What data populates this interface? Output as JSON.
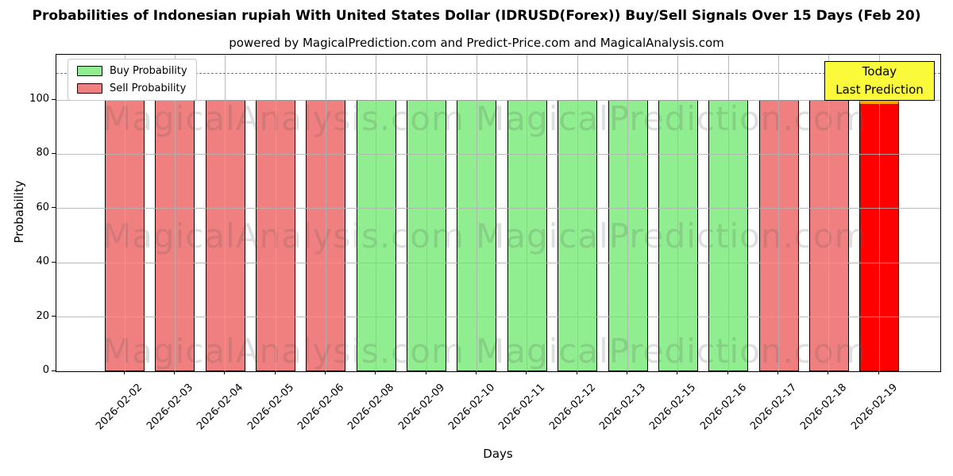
{
  "header": {
    "title": "Probabilities of Indonesian rupiah With United States Dollar (IDRUSD(Forex)) Buy/Sell Signals Over 15 Days (Feb 20)",
    "subtitle": "powered by MagicalPrediction.com and Predict-Price.com and MagicalAnalysis.com"
  },
  "legend": {
    "items": [
      {
        "label": "Buy Probability",
        "color": "#90ee90"
      },
      {
        "label": "Sell Probability",
        "color": "#f08080"
      }
    ]
  },
  "annotation": {
    "line1": "Today",
    "line2": "Last Prediction",
    "bg_color": "#ffff00"
  },
  "watermarks": {
    "left": "MagicalAnalysis.com",
    "right": "MagicalPrediction.com"
  },
  "chart_data": {
    "type": "bar",
    "title": "Probabilities of Indonesian rupiah With United States Dollar (IDRUSD(Forex)) Buy/Sell Signals Over 15 Days (Feb 20)",
    "subtitle": "powered by MagicalPrediction.com and Predict-Price.com and MagicalAnalysis.com",
    "xlabel": "Days",
    "ylabel": "Probability",
    "categories": [
      "2026-02-02",
      "2026-02-03",
      "2026-02-04",
      "2026-02-05",
      "2026-02-06",
      "2026-02-08",
      "2026-02-09",
      "2026-02-10",
      "2026-02-11",
      "2026-02-12",
      "2026-02-13",
      "2026-02-15",
      "2026-02-16",
      "2026-02-17",
      "2026-02-18",
      "2026-02-19"
    ],
    "bar_values": [
      100,
      100,
      100,
      100,
      100,
      100,
      100,
      100,
      100,
      100,
      100,
      100,
      100,
      100,
      100,
      100
    ],
    "bar_signals": [
      "sell",
      "sell",
      "sell",
      "sell",
      "sell",
      "buy",
      "buy",
      "buy",
      "buy",
      "buy",
      "buy",
      "buy",
      "buy",
      "sell",
      "sell",
      "last_sell"
    ],
    "series": [
      {
        "name": "Buy Probability",
        "values": [
          0,
          0,
          0,
          0,
          0,
          100,
          100,
          100,
          100,
          100,
          100,
          100,
          100,
          0,
          0,
          0
        ]
      },
      {
        "name": "Sell Probability",
        "values": [
          100,
          100,
          100,
          100,
          100,
          0,
          0,
          0,
          0,
          0,
          0,
          0,
          0,
          100,
          100,
          100
        ]
      }
    ],
    "ylim": [
      0,
      116.7
    ],
    "yticks": [
      0,
      20,
      40,
      60,
      80,
      100
    ],
    "dashed_line_y": 110,
    "grid": true,
    "legend_position": "upper left",
    "colors": {
      "buy": "#90ee90",
      "sell": "#f08080",
      "last_prediction_fill": "#ff0000",
      "last_prediction_edge": "#ffa500",
      "bar_edge": "#000000",
      "grid": "#b0b0b0",
      "dashed_line": "#7a7a7a",
      "annotation_bg": "#ffff00"
    }
  }
}
